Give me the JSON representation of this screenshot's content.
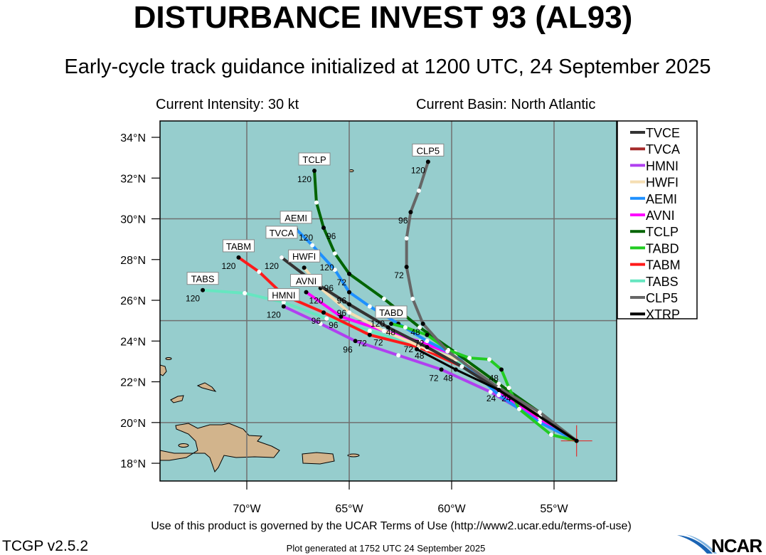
{
  "header": {
    "title": "DISTURBANCE INVEST 93 (AL93)",
    "subtitle": "Early-cycle track guidance initialized at 1200 UTC, 24 September 2025",
    "intensity": "Current Intensity: 30 kt",
    "basin": "Current Basin: North Atlantic"
  },
  "map": {
    "ocean_color": "#96cdcd",
    "land_color": "#d2b48c",
    "grid_color": "#707070",
    "lat_ticks": [
      {
        "v": 18,
        "label": "18°N"
      },
      {
        "v": 20,
        "label": "20°N"
      },
      {
        "v": 22,
        "label": "22°N"
      },
      {
        "v": 24,
        "label": "24°N"
      },
      {
        "v": 26,
        "label": "26°N"
      },
      {
        "v": 28,
        "label": "28°N"
      },
      {
        "v": 30,
        "label": "30°N"
      },
      {
        "v": 32,
        "label": "32°N"
      },
      {
        "v": 34,
        "label": "34°N"
      }
    ],
    "lon_ticks": [
      {
        "v": -70,
        "label": "70°W"
      },
      {
        "v": -65,
        "label": "65°W"
      },
      {
        "v": -60,
        "label": "60°W"
      },
      {
        "v": -55,
        "label": "55°W"
      }
    ],
    "grid_lats": [
      20,
      25,
      30
    ],
    "grid_lons": [
      -70,
      -65,
      -60,
      -55
    ],
    "current_position": {
      "lon": -53.9,
      "lat": 19.1,
      "color": "#e03030"
    }
  },
  "tracks": [
    {
      "name": "CLP5",
      "color": "#666666",
      "label": "CLP5",
      "pts": [
        [
          -53.9,
          19.1
        ],
        [
          -55.7,
          20.5
        ],
        [
          -57.7,
          21.7
        ],
        [
          -60.2,
          23.5
        ],
        [
          -61.4,
          24.85
        ],
        [
          -61.9,
          26.07
        ],
        [
          -62.2,
          27.64
        ],
        [
          -62.2,
          29.04
        ],
        [
          -62.0,
          30.33
        ],
        [
          -61.6,
          31.38
        ],
        [
          -61.15,
          32.8
        ]
      ],
      "marks": [
        {
          "i": 4,
          "h": "48"
        },
        {
          "i": 6,
          "h": "72"
        },
        {
          "i": 8,
          "h": "96"
        },
        {
          "i": 10,
          "h": "120"
        }
      ]
    },
    {
      "name": "TABS",
      "color": "#66e6c0",
      "label": "TABS",
      "pts": [
        [
          -53.9,
          19.1
        ],
        [
          -55.7,
          20.1
        ],
        [
          -57.7,
          21.5
        ],
        [
          -59.8,
          23.1
        ],
        [
          -61.9,
          23.8
        ],
        [
          -64.0,
          24.5
        ],
        [
          -66.1,
          25.1
        ],
        [
          -68.2,
          25.9
        ],
        [
          -70.1,
          26.35
        ],
        [
          -72.15,
          26.5
        ]
      ],
      "marks": [
        {
          "i": 9,
          "h": "120"
        }
      ]
    },
    {
      "name": "TABM",
      "color": "#ff1a1a",
      "label": "TABM",
      "pts": [
        [
          -53.9,
          19.1
        ],
        [
          -55.7,
          20.1
        ],
        [
          -57.7,
          21.7
        ],
        [
          -59.5,
          22.75
        ],
        [
          -61.6,
          23.7
        ],
        [
          -64.0,
          24.3
        ],
        [
          -66.25,
          25.4
        ],
        [
          -68.2,
          26.25
        ],
        [
          -69.4,
          27.4
        ],
        [
          -70.4,
          28.1
        ]
      ],
      "marks": [
        {
          "i": 5,
          "h": "72"
        },
        {
          "i": 6,
          "h": "96"
        },
        {
          "i": 9,
          "h": "120"
        }
      ]
    },
    {
      "name": "HMNI",
      "color": "#b040f0",
      "label": "HMNI",
      "pts": [
        [
          -53.9,
          19.1
        ],
        [
          -55.7,
          20.1
        ],
        [
          -58.1,
          21.5
        ],
        [
          -60.5,
          22.6
        ],
        [
          -62.6,
          23.3
        ],
        [
          -64.7,
          24.0
        ],
        [
          -66.4,
          24.85
        ],
        [
          -68.2,
          25.7
        ]
      ],
      "marks": [
        {
          "i": 3,
          "h": "72"
        },
        {
          "i": 5,
          "h": "96"
        },
        {
          "i": 7,
          "h": "120"
        }
      ]
    },
    {
      "name": "AVNI",
      "color": "#ff00ff",
      "label": "AVNI",
      "pts": [
        [
          -53.9,
          19.1
        ],
        [
          -55.7,
          20.1
        ],
        [
          -57.7,
          21.5
        ],
        [
          -59.8,
          23.3
        ],
        [
          -61.56,
          23.97
        ],
        [
          -63.3,
          24.5
        ],
        [
          -65.4,
          25.2
        ],
        [
          -67.1,
          26.4
        ]
      ],
      "marks": [
        {
          "i": 6,
          "h": "96"
        },
        {
          "i": 7,
          "h": "120"
        }
      ]
    },
    {
      "name": "HWFI",
      "color": "#f5deb3",
      "label": "HWFI",
      "pts": [
        [
          -53.9,
          19.1
        ],
        [
          -55.7,
          20.3
        ],
        [
          -57.4,
          21.7
        ],
        [
          -59.13,
          22.9
        ],
        [
          -61.2,
          23.6
        ],
        [
          -63.3,
          24.5
        ],
        [
          -65.0,
          25.4
        ],
        [
          -66.4,
          26.6
        ],
        [
          -67.2,
          27.6
        ]
      ],
      "marks": [
        {
          "i": 7,
          "h": "96"
        },
        {
          "i": 8,
          "h": "120"
        }
      ]
    },
    {
      "name": "AEMI",
      "color": "#1e90ff",
      "label": "AEMI",
      "pts": [
        [
          -53.9,
          19.1
        ],
        [
          -55.7,
          20.0
        ],
        [
          -57.7,
          21.35
        ],
        [
          -59.8,
          23.3
        ],
        [
          -61.2,
          24.0
        ],
        [
          -62.6,
          24.85
        ],
        [
          -64.0,
          25.7
        ],
        [
          -65.0,
          26.4
        ],
        [
          -65.7,
          27.5
        ],
        [
          -66.8,
          28.7
        ],
        [
          -67.6,
          29.5
        ]
      ],
      "marks": [
        {
          "i": 5,
          "h": "48"
        },
        {
          "i": 7,
          "h": "96"
        },
        {
          "i": 10,
          "h": "120"
        }
      ]
    },
    {
      "name": "TCLP",
      "color": "#006400",
      "label": "TCLP",
      "pts": [
        [
          -53.9,
          19.1
        ],
        [
          -55.7,
          20.5
        ],
        [
          -57.7,
          21.9
        ],
        [
          -59.83,
          23.45
        ],
        [
          -61.56,
          24.67
        ],
        [
          -63.3,
          26.07
        ],
        [
          -65.0,
          27.3
        ],
        [
          -65.7,
          28.3
        ],
        [
          -66.25,
          29.56
        ],
        [
          -66.6,
          30.8
        ],
        [
          -66.7,
          32.36
        ]
      ],
      "marks": [
        {
          "i": 6,
          "h": "72"
        },
        {
          "i": 8,
          "h": "96"
        },
        {
          "i": 10,
          "h": "120"
        }
      ]
    },
    {
      "name": "TABD",
      "color": "#22cc22",
      "label": "TABD",
      "pts": [
        [
          -53.9,
          19.1
        ],
        [
          -55.14,
          19.4
        ],
        [
          -56.7,
          20.66
        ],
        [
          -57.2,
          21.7
        ],
        [
          -57.57,
          22.6
        ],
        [
          -58.16,
          23.1
        ],
        [
          -59.13,
          23.17
        ],
        [
          -60.17,
          23.56
        ],
        [
          -61.2,
          24.3
        ],
        [
          -62.26,
          24.67
        ],
        [
          -62.95,
          24.85
        ]
      ],
      "marks": [
        {
          "i": 4,
          "h": "48"
        },
        {
          "i": 8,
          "h": "72"
        },
        {
          "i": 10,
          "h": "120"
        }
      ]
    },
    {
      "name": "TVCA",
      "color": "#a52a2a",
      "label": "TVCA",
      "pts": [
        [
          -53.9,
          19.1
        ],
        [
          -55.7,
          20.3
        ],
        [
          -57.7,
          21.6
        ],
        [
          -59.5,
          22.75
        ],
        [
          -61.2,
          23.7
        ],
        [
          -63.1,
          24.67
        ],
        [
          -65.0,
          25.8
        ],
        [
          -66.8,
          26.95
        ],
        [
          -68.3,
          28.1
        ]
      ],
      "marks": [
        {
          "i": 8,
          "h": "120"
        }
      ]
    },
    {
      "name": "TVCE",
      "color": "#333333",
      "label": "",
      "pts": [
        [
          -53.9,
          19.1
        ],
        [
          -55.7,
          20.3
        ],
        [
          -57.7,
          21.6
        ],
        [
          -59.5,
          22.75
        ],
        [
          -61.2,
          23.7
        ],
        [
          -63.1,
          24.67
        ],
        [
          -65.0,
          25.8
        ],
        [
          -66.8,
          26.95
        ],
        [
          -68.3,
          28.1
        ]
      ],
      "marks": [
        {
          "i": 2,
          "h": "24"
        },
        {
          "i": 4,
          "h": "48"
        },
        {
          "i": 5,
          "h": "72"
        },
        {
          "i": 6,
          "h": "96"
        }
      ]
    },
    {
      "name": "XTRP",
      "color": "#000000",
      "label": "",
      "pts": [
        [
          -53.9,
          19.1
        ],
        [
          -57.7,
          21.6
        ],
        [
          -59.8,
          22.6
        ],
        [
          -61.7,
          23.6
        ]
      ],
      "marks": [
        {
          "i": 1,
          "h": "24"
        },
        {
          "i": 2,
          "h": "48"
        },
        {
          "i": 3,
          "h": "72"
        }
      ]
    }
  ],
  "legend": [
    {
      "label": "TVCE",
      "color": "#333333"
    },
    {
      "label": "TVCA",
      "color": "#a52a2a"
    },
    {
      "label": "HMNI",
      "color": "#b040f0"
    },
    {
      "label": "HWFI",
      "color": "#f5deb3"
    },
    {
      "label": "AEMI",
      "color": "#1e90ff"
    },
    {
      "label": "AVNI",
      "color": "#ff00ff"
    },
    {
      "label": "TCLP",
      "color": "#006400"
    },
    {
      "label": "TABD",
      "color": "#22cc22"
    },
    {
      "label": "TABM",
      "color": "#ff1a1a"
    },
    {
      "label": "TABS",
      "color": "#66e6c0"
    },
    {
      "label": "CLP5",
      "color": "#666666"
    },
    {
      "label": "XTRP",
      "color": "#000000"
    }
  ],
  "footer": {
    "terms": "Use of this product is governed by the UCAR Terms of Use (http://www2.ucar.edu/terms-of-use)",
    "version": "TCGP v2.5.2",
    "generated": "Plot generated at 1752 UTC   24 September 2025",
    "logo_text": "NCAR"
  }
}
